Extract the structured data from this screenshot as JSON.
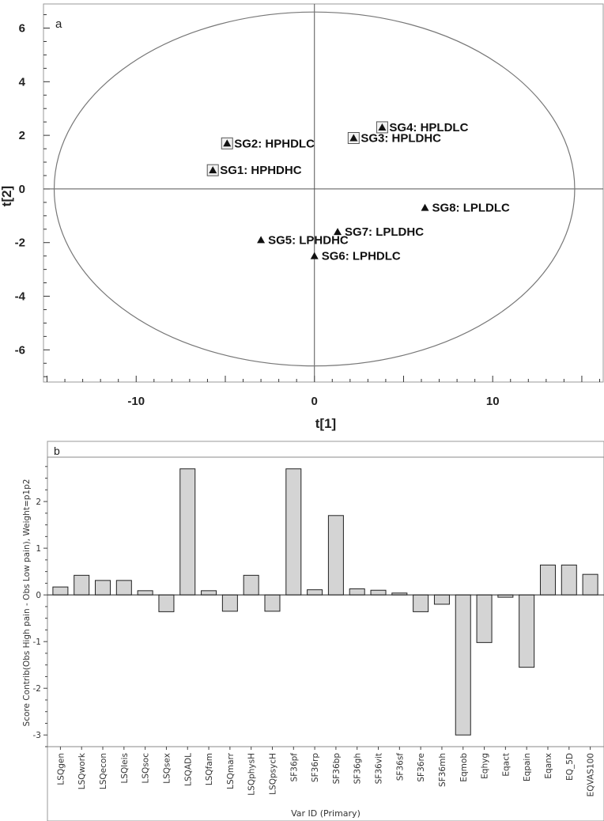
{
  "chart_data": [
    {
      "type": "scatter",
      "panel_label": "a",
      "xlabel": "t[1]",
      "ylabel": "t[2]",
      "xlim": [
        -15.2,
        16.2
      ],
      "ylim": [
        -7.2,
        6.9
      ],
      "xticks": [
        -10,
        0,
        10
      ],
      "yticks": [
        6,
        4,
        2,
        0,
        -2,
        -4,
        -6
      ],
      "ellipse": {
        "cx": 0,
        "cy": 0,
        "rx": 14.6,
        "ry": 6.6
      },
      "points": [
        {
          "label": "SG1: HPHDHC",
          "x": -5.7,
          "y": 0.7,
          "boxed": true
        },
        {
          "label": "SG2: HPHDLC",
          "x": -4.9,
          "y": 1.7,
          "boxed": true
        },
        {
          "label": "SG3: HPLDHC",
          "x": 2.2,
          "y": 1.9,
          "boxed": true
        },
        {
          "label": "SG4: HPLDLC",
          "x": 3.8,
          "y": 2.3,
          "boxed": true
        },
        {
          "label": "SG5: LPHDHC",
          "x": -3.0,
          "y": -1.9,
          "boxed": false
        },
        {
          "label": "SG6: LPHDLC",
          "x": 0.0,
          "y": -2.5,
          "boxed": false
        },
        {
          "label": "SG7: LPLDHC",
          "x": 1.3,
          "y": -1.6,
          "boxed": false
        },
        {
          "label": "SG8: LPLDLC",
          "x": 6.2,
          "y": -0.7,
          "boxed": false
        }
      ]
    },
    {
      "type": "bar",
      "panel_label": "b",
      "xlabel": "Var ID (Primary)",
      "ylabel": "Score Contrib(Obs High pain - Obs Low pain), Weight=p1p2",
      "ylim": [
        -3.25,
        2.95
      ],
      "yticks": [
        2,
        1,
        0,
        -1,
        -2,
        -3
      ],
      "categories": [
        "LSQgen",
        "LSQwork",
        "LSQecon",
        "LSQleis",
        "LSQsoc",
        "LSQsex",
        "LSQADL",
        "LSQfam",
        "LSQmarr",
        "LSQphysH",
        "LSQpsycH",
        "SF36pf",
        "SF36rp",
        "SF36bp",
        "SF36gh",
        "SF36vit",
        "SF36sf",
        "SF36re",
        "SF36mh",
        "Eqmob",
        "Eqhyg",
        "Eqact",
        "Eqpain",
        "Eqanx",
        "EQ_5D",
        "EQVAS100"
      ],
      "values": [
        0.17,
        0.42,
        0.31,
        0.31,
        0.09,
        -0.36,
        2.7,
        0.09,
        -0.35,
        0.42,
        -0.35,
        2.7,
        0.11,
        1.7,
        0.13,
        0.1,
        0.04,
        -0.36,
        -0.2,
        -3.0,
        -1.02,
        -0.05,
        -1.55,
        0.64,
        0.64,
        0.44
      ]
    }
  ]
}
